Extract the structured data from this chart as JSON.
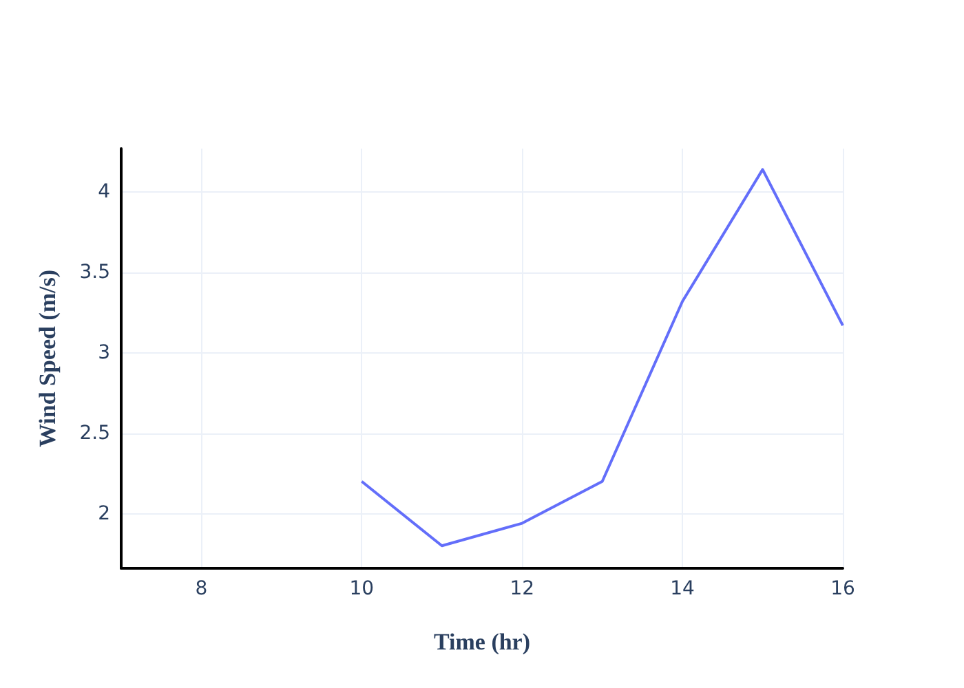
{
  "chart_data": {
    "type": "line",
    "xlabel": "Time (hr)",
    "ylabel": "Wind Speed (m/s)",
    "x": [
      10,
      11,
      12,
      13,
      14,
      15,
      16
    ],
    "series": [
      {
        "color": "#636efa",
        "values": [
          2.2,
          1.8,
          1.94,
          2.2,
          3.32,
          4.14,
          3.17
        ]
      }
    ],
    "xlim": [
      7,
      16
    ],
    "xticks": [
      8,
      10,
      12,
      14,
      16
    ],
    "ylim": [
      1.66,
      4.27
    ],
    "yticks": [
      2,
      2.5,
      3,
      3.5,
      4
    ],
    "grid": true,
    "marker": "none",
    "line_style": "solid"
  }
}
